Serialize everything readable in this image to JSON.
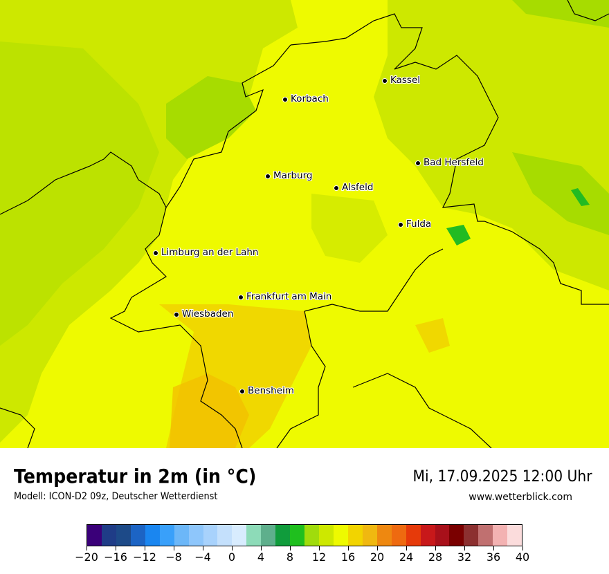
{
  "map": {
    "title": "Temperatur in 2m (in °C)",
    "model": "Modell: ICON-D2 09z, Deutscher Wetterdienst",
    "valid_time": "Mi, 17.09.2025 12:00 Uhr",
    "website": "www.wetterblick.com",
    "colors": {
      "background_12_14": "#eefa00",
      "lighter_green_10_12": "#cde800",
      "green_8_10": "#a7dc00",
      "dark_green_6_8": "#22bb22",
      "yellow_orange_16_18": "#f0d800",
      "orange_18_20": "#f2c000"
    },
    "cities": [
      {
        "name": "Kassel"
      },
      {
        "name": "Korbach"
      },
      {
        "name": "Bad Hersfeld"
      },
      {
        "name": "Marburg"
      },
      {
        "name": "Alsfeld"
      },
      {
        "name": "Fulda"
      },
      {
        "name": "Limburg an der Lahn"
      },
      {
        "name": "Frankfurt am Main"
      },
      {
        "name": "Wiesbaden"
      },
      {
        "name": "Bensheim"
      }
    ]
  },
  "colorbar": {
    "unit": "°C",
    "min": -20,
    "max": 40,
    "step": 2,
    "colors": [
      "#3a0079",
      "#1f3c87",
      "#1d4a88",
      "#1c64c4",
      "#1a86f0",
      "#39a0fa",
      "#6cb7f8",
      "#8ec6fb",
      "#a8d2fc",
      "#c4e0fc",
      "#d8ecfe",
      "#8ddbb8",
      "#5eaf8c",
      "#109c3c",
      "#1fbf1e",
      "#a0dc0c",
      "#cde800",
      "#eefa00",
      "#f2d400",
      "#f0b810",
      "#ee8810",
      "#ee6a10",
      "#e63a0a",
      "#c8181a",
      "#a8101a",
      "#7a0000",
      "#8c3030",
      "#c07070",
      "#f3b2b2",
      "#fbdcdc"
    ],
    "tick_labels": [
      "−20",
      "−16",
      "−12",
      "−8",
      "−4",
      "0",
      "4",
      "8",
      "12",
      "16",
      "20",
      "24",
      "28",
      "32",
      "36",
      "40"
    ]
  }
}
